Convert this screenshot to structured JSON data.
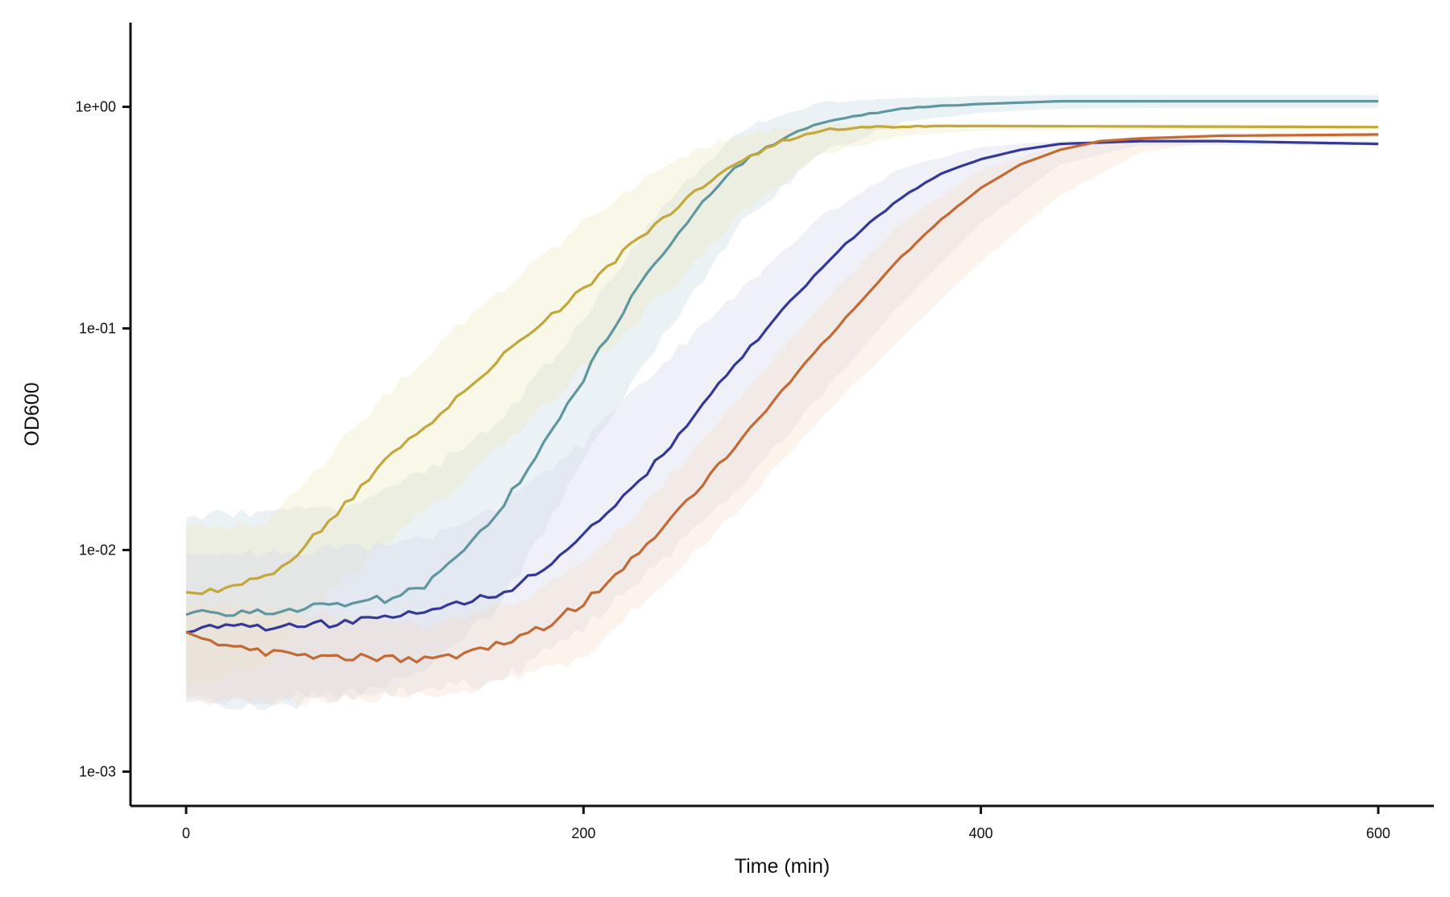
{
  "chart_data": {
    "type": "line",
    "title": "",
    "xlabel": "Time (min)",
    "ylabel": "OD600",
    "xlim": [
      -28,
      628
    ],
    "ylim": [
      0.0007,
      2.4
    ],
    "y_scale": "log",
    "grid": false,
    "legend": "none",
    "x_ticks": [
      0,
      200,
      400,
      600
    ],
    "x_tick_labels": [
      "0",
      "200",
      "400",
      "600"
    ],
    "y_ticks": [
      0.001,
      0.01,
      0.1,
      1
    ],
    "y_tick_labels": [
      "1e-03",
      "1e-02",
      "1e-01",
      "1e+00"
    ],
    "series": [
      {
        "color": "#5f969f",
        "band_color": "#c7dbe3",
        "points": [
          [
            0,
            0.0052
          ],
          [
            40,
            0.0052
          ],
          [
            80,
            0.0058
          ],
          [
            100,
            0.006
          ],
          [
            120,
            0.0068
          ],
          [
            140,
            0.0098
          ],
          [
            160,
            0.016
          ],
          [
            180,
            0.03
          ],
          [
            200,
            0.06
          ],
          [
            220,
            0.12
          ],
          [
            240,
            0.22
          ],
          [
            260,
            0.38
          ],
          [
            280,
            0.56
          ],
          [
            300,
            0.72
          ],
          [
            320,
            0.84
          ],
          [
            340,
            0.92
          ],
          [
            360,
            0.98
          ],
          [
            380,
            1.01
          ],
          [
            400,
            1.03
          ],
          [
            440,
            1.06
          ],
          [
            500,
            1.06
          ],
          [
            600,
            1.06
          ]
        ],
        "lower": [
          [
            0,
            0.0021
          ],
          [
            40,
            0.0019
          ],
          [
            80,
            0.0022
          ],
          [
            120,
            0.0028
          ],
          [
            160,
            0.006
          ],
          [
            200,
            0.025
          ],
          [
            240,
            0.09
          ],
          [
            280,
            0.3
          ],
          [
            320,
            0.62
          ],
          [
            360,
            0.85
          ],
          [
            400,
            0.94
          ],
          [
            440,
            0.98
          ],
          [
            500,
            0.99
          ],
          [
            600,
            0.99
          ]
        ],
        "upper": [
          [
            0,
            0.0142
          ],
          [
            40,
            0.0148
          ],
          [
            80,
            0.016
          ],
          [
            120,
            0.022
          ],
          [
            160,
            0.04
          ],
          [
            200,
            0.11
          ],
          [
            240,
            0.36
          ],
          [
            280,
            0.8
          ],
          [
            320,
            1.04
          ],
          [
            360,
            1.1
          ],
          [
            400,
            1.12
          ],
          [
            440,
            1.13
          ],
          [
            500,
            1.13
          ],
          [
            600,
            1.13
          ]
        ]
      },
      {
        "color": "#c2a83a",
        "band_color": "#ebe8bc",
        "points": [
          [
            0,
            0.0066
          ],
          [
            20,
            0.0066
          ],
          [
            40,
            0.0075
          ],
          [
            60,
            0.0105
          ],
          [
            80,
            0.016
          ],
          [
            100,
            0.025
          ],
          [
            120,
            0.036
          ],
          [
            140,
            0.052
          ],
          [
            160,
            0.075
          ],
          [
            180,
            0.105
          ],
          [
            200,
            0.15
          ],
          [
            220,
            0.22
          ],
          [
            240,
            0.31
          ],
          [
            260,
            0.44
          ],
          [
            280,
            0.58
          ],
          [
            300,
            0.7
          ],
          [
            320,
            0.78
          ],
          [
            340,
            0.81
          ],
          [
            380,
            0.82
          ],
          [
            600,
            0.81
          ]
        ],
        "lower": [
          [
            0,
            0.0025
          ],
          [
            40,
            0.003
          ],
          [
            80,
            0.0075
          ],
          [
            120,
            0.015
          ],
          [
            160,
            0.03
          ],
          [
            200,
            0.065
          ],
          [
            240,
            0.14
          ],
          [
            280,
            0.34
          ],
          [
            320,
            0.62
          ],
          [
            360,
            0.74
          ],
          [
            400,
            0.78
          ],
          [
            600,
            0.79
          ]
        ],
        "upper": [
          [
            0,
            0.0125
          ],
          [
            40,
            0.013
          ],
          [
            80,
            0.032
          ],
          [
            120,
            0.075
          ],
          [
            160,
            0.15
          ],
          [
            200,
            0.3
          ],
          [
            240,
            0.55
          ],
          [
            280,
            0.76
          ],
          [
            320,
            0.83
          ],
          [
            360,
            0.84
          ],
          [
            400,
            0.84
          ],
          [
            600,
            0.83
          ]
        ]
      },
      {
        "color": "#343996",
        "band_color": "#d4d6ec",
        "points": [
          [
            0,
            0.0044
          ],
          [
            40,
            0.0045
          ],
          [
            80,
            0.0047
          ],
          [
            100,
            0.005
          ],
          [
            120,
            0.0054
          ],
          [
            140,
            0.0058
          ],
          [
            160,
            0.0065
          ],
          [
            180,
            0.0082
          ],
          [
            200,
            0.0115
          ],
          [
            220,
            0.017
          ],
          [
            240,
            0.027
          ],
          [
            260,
            0.045
          ],
          [
            280,
            0.075
          ],
          [
            300,
            0.12
          ],
          [
            320,
            0.19
          ],
          [
            340,
            0.28
          ],
          [
            360,
            0.39
          ],
          [
            380,
            0.5
          ],
          [
            400,
            0.58
          ],
          [
            420,
            0.64
          ],
          [
            440,
            0.68
          ],
          [
            480,
            0.7
          ],
          [
            520,
            0.7
          ],
          [
            600,
            0.68
          ]
        ],
        "lower": [
          [
            0,
            0.0021
          ],
          [
            60,
            0.0022
          ],
          [
            120,
            0.0023
          ],
          [
            160,
            0.0026
          ],
          [
            200,
            0.0045
          ],
          [
            240,
            0.009
          ],
          [
            280,
            0.02
          ],
          [
            320,
            0.05
          ],
          [
            360,
            0.13
          ],
          [
            400,
            0.3
          ],
          [
            440,
            0.55
          ],
          [
            480,
            0.67
          ],
          [
            600,
            0.67
          ]
        ],
        "upper": [
          [
            0,
            0.0096
          ],
          [
            60,
            0.0098
          ],
          [
            120,
            0.011
          ],
          [
            160,
            0.016
          ],
          [
            200,
            0.03
          ],
          [
            240,
            0.07
          ],
          [
            280,
            0.15
          ],
          [
            320,
            0.32
          ],
          [
            360,
            0.53
          ],
          [
            400,
            0.66
          ],
          [
            440,
            0.7
          ],
          [
            480,
            0.71
          ],
          [
            600,
            0.7
          ]
        ]
      },
      {
        "color": "#c26a35",
        "band_color": "#f4dcc8",
        "points": [
          [
            0,
            0.0041
          ],
          [
            20,
            0.0037
          ],
          [
            40,
            0.0034
          ],
          [
            80,
            0.0033
          ],
          [
            120,
            0.0032
          ],
          [
            140,
            0.0034
          ],
          [
            160,
            0.0038
          ],
          [
            180,
            0.0045
          ],
          [
            200,
            0.0058
          ],
          [
            220,
            0.0083
          ],
          [
            240,
            0.0125
          ],
          [
            260,
            0.02
          ],
          [
            280,
            0.032
          ],
          [
            300,
            0.052
          ],
          [
            320,
            0.085
          ],
          [
            340,
            0.135
          ],
          [
            360,
            0.21
          ],
          [
            380,
            0.31
          ],
          [
            400,
            0.43
          ],
          [
            420,
            0.55
          ],
          [
            440,
            0.64
          ],
          [
            460,
            0.7
          ],
          [
            480,
            0.72
          ],
          [
            520,
            0.74
          ],
          [
            600,
            0.75
          ]
        ],
        "lower": [
          [
            0,
            0.0021
          ],
          [
            60,
            0.0021
          ],
          [
            120,
            0.0022
          ],
          [
            160,
            0.0025
          ],
          [
            200,
            0.0032
          ],
          [
            240,
            0.007
          ],
          [
            280,
            0.016
          ],
          [
            320,
            0.04
          ],
          [
            360,
            0.09
          ],
          [
            400,
            0.2
          ],
          [
            440,
            0.4
          ],
          [
            480,
            0.62
          ],
          [
            520,
            0.71
          ],
          [
            600,
            0.73
          ]
        ],
        "upper": [
          [
            0,
            0.0058
          ],
          [
            60,
            0.0052
          ],
          [
            120,
            0.0046
          ],
          [
            160,
            0.0055
          ],
          [
            200,
            0.0085
          ],
          [
            240,
            0.02
          ],
          [
            280,
            0.05
          ],
          [
            320,
            0.13
          ],
          [
            360,
            0.3
          ],
          [
            400,
            0.52
          ],
          [
            440,
            0.67
          ],
          [
            480,
            0.73
          ],
          [
            520,
            0.76
          ],
          [
            600,
            0.77
          ]
        ]
      }
    ]
  }
}
